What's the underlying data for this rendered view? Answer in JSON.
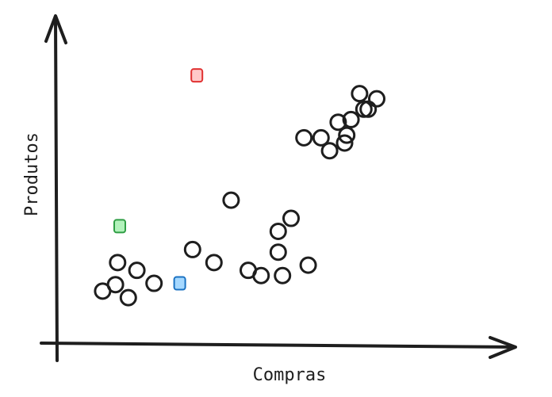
{
  "chart_data": {
    "type": "scatter",
    "title": "",
    "xlabel": "Compras",
    "ylabel": "Produtos",
    "xlim": [
      0,
      10
    ],
    "ylim": [
      0,
      10
    ],
    "grid": false,
    "legend": "none",
    "series": [
      {
        "marker": "circle-outline",
        "color": "#1e1e1e",
        "x": [
          1.1,
          1.4,
          1.7,
          1.45,
          2.3,
          1.9,
          3.2,
          4.1,
          3.7,
          4.8,
          4.5,
          5.5,
          5.2,
          5.2,
          5.9,
          5.3,
          5.8,
          6.2,
          6.75,
          6.8,
          6.4,
          6.6,
          6.9,
          7.2,
          7.3,
          7.1,
          7.5
        ],
        "y": [
          2.0,
          2.25,
          1.75,
          3.1,
          2.3,
          2.8,
          3.6,
          5.5,
          3.1,
          2.6,
          2.8,
          4.8,
          4.3,
          3.5,
          3.0,
          2.6,
          7.9,
          7.9,
          7.7,
          8.0,
          7.4,
          8.5,
          8.6,
          9.0,
          9.0,
          9.6,
          9.4
        ]
      },
      {
        "marker": "square",
        "color": "#2f9e44",
        "fill": "#b2f2bb",
        "x": [
          1.5
        ],
        "y": [
          4.5
        ]
      },
      {
        "marker": "square",
        "color": "#1971c2",
        "fill": "#a5d8ff",
        "x": [
          2.9
        ],
        "y": [
          2.3
        ]
      },
      {
        "marker": "square",
        "color": "#e03131",
        "fill": "#ffc9c9",
        "x": [
          3.3
        ],
        "y": [
          10.3
        ]
      }
    ]
  }
}
